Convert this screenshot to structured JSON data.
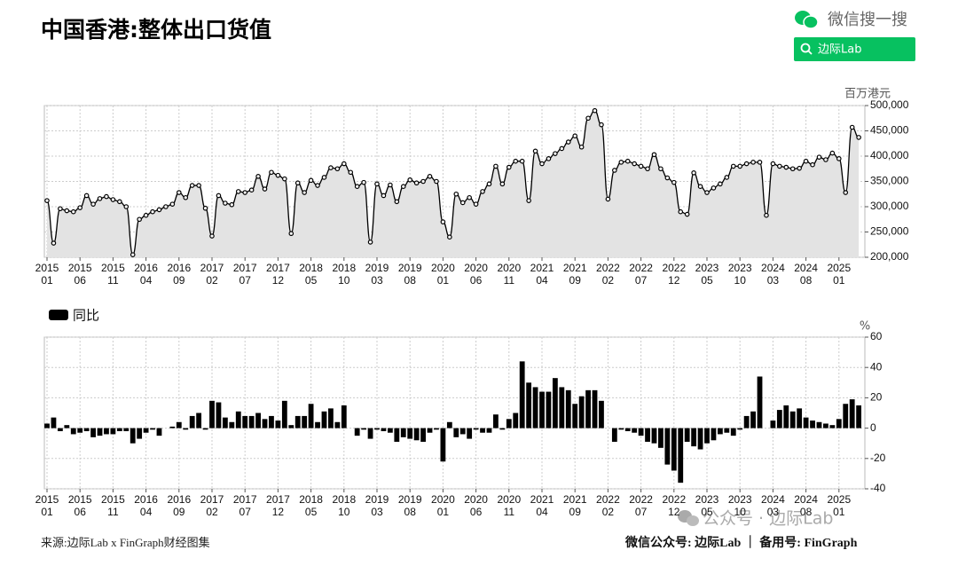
{
  "title": "中国香港:整体出口货值",
  "wechat_search": "微信搜一搜",
  "search_button": "边际Lab",
  "source": "来源:边际Lab x FinGraph财经图集",
  "footer": "微信公众号: 边际Lab ｜ 备用号: FinGraph",
  "watermark": "公众号 · 边际Lab",
  "chart_data": [
    {
      "type": "line",
      "unit": "百万港元",
      "color": "#000000",
      "fill": "#e3e3e3",
      "grid": true,
      "categories": [
        [
          "2015",
          "01"
        ],
        null,
        null,
        null,
        null,
        [
          "2015",
          "06"
        ],
        null,
        null,
        null,
        null,
        [
          "2015",
          "11"
        ],
        null,
        null,
        null,
        null,
        [
          "2016",
          "04"
        ],
        null,
        null,
        null,
        null,
        [
          "2016",
          "09"
        ],
        null,
        null,
        null,
        null,
        [
          "2017",
          "02"
        ],
        null,
        null,
        null,
        null,
        [
          "2017",
          "07"
        ],
        null,
        null,
        null,
        null,
        [
          "2017",
          "12"
        ],
        null,
        null,
        null,
        null,
        [
          "2018",
          "05"
        ],
        null,
        null,
        null,
        null,
        [
          "2018",
          "10"
        ],
        null,
        null,
        null,
        null,
        [
          "2019",
          "03"
        ],
        null,
        null,
        null,
        null,
        [
          "2019",
          "08"
        ],
        null,
        null,
        null,
        null,
        [
          "2020",
          "01"
        ],
        null,
        null,
        null,
        null,
        [
          "2020",
          "06"
        ],
        null,
        null,
        null,
        null,
        [
          "2020",
          "11"
        ],
        null,
        null,
        null,
        null,
        [
          "2021",
          "04"
        ],
        null,
        null,
        null,
        null,
        [
          "2021",
          "09"
        ],
        null,
        null,
        null,
        null,
        [
          "2022",
          "02"
        ],
        null,
        null,
        null,
        null,
        [
          "2022",
          "07"
        ],
        null,
        null,
        null,
        null,
        [
          "2022",
          "12"
        ],
        null,
        null,
        null,
        null,
        [
          "2023",
          "05"
        ],
        null,
        null,
        null,
        null,
        [
          "2023",
          "10"
        ],
        null,
        null,
        null,
        null,
        [
          "2024",
          "03"
        ],
        null,
        null,
        null,
        null,
        [
          "2024",
          "08"
        ],
        null,
        null,
        null,
        null,
        [
          "2025",
          "01"
        ],
        null,
        null,
        null
      ],
      "values": [
        312000,
        228000,
        296000,
        292000,
        290000,
        298000,
        322000,
        305000,
        316000,
        320000,
        314000,
        310000,
        300000,
        205000,
        275000,
        283000,
        290000,
        294000,
        300000,
        305000,
        328000,
        318000,
        342000,
        342000,
        297000,
        242000,
        322000,
        307000,
        304000,
        330000,
        328000,
        333000,
        360000,
        335000,
        368000,
        362000,
        355000,
        247000,
        347000,
        328000,
        352000,
        342000,
        358000,
        377000,
        375000,
        385000,
        368000,
        340000,
        348000,
        230000,
        345000,
        322000,
        343000,
        310000,
        340000,
        353000,
        347000,
        350000,
        360000,
        350000,
        270000,
        240000,
        325000,
        308000,
        318000,
        305000,
        330000,
        345000,
        380000,
        345000,
        378000,
        390000,
        390000,
        312000,
        410000,
        385000,
        395000,
        405000,
        415000,
        428000,
        440000,
        418000,
        475000,
        490000,
        462000,
        315000,
        372000,
        388000,
        390000,
        385000,
        380000,
        375000,
        403000,
        375000,
        357000,
        348000,
        290000,
        285000,
        367000,
        340000,
        328000,
        337000,
        345000,
        358000,
        380000,
        380000,
        385000,
        388000,
        388000,
        283000,
        385000,
        380000,
        378000,
        375000,
        376000,
        390000,
        383000,
        398000,
        393000,
        406000,
        395000,
        328000,
        457000,
        437000
      ],
      "ylim": [
        200000,
        500000
      ],
      "yticks": [
        {
          "value": 200000,
          "label": "200,000"
        },
        {
          "value": 250000,
          "label": "250,000"
        },
        {
          "value": 300000,
          "label": "300,000"
        },
        {
          "value": 350000,
          "label": "350,000"
        },
        {
          "value": 400000,
          "label": "400,000"
        },
        {
          "value": 450000,
          "label": "450,000"
        },
        {
          "value": 500000,
          "label": "500,000"
        }
      ]
    },
    {
      "type": "bar",
      "unit": "%",
      "grid": true,
      "categories": [
        [
          "2015",
          "01"
        ],
        null,
        null,
        null,
        null,
        [
          "2015",
          "06"
        ],
        null,
        null,
        null,
        null,
        [
          "2015",
          "11"
        ],
        null,
        null,
        null,
        null,
        [
          "2016",
          "04"
        ],
        null,
        null,
        null,
        null,
        [
          "2016",
          "09"
        ],
        null,
        null,
        null,
        null,
        [
          "2017",
          "02"
        ],
        null,
        null,
        null,
        null,
        [
          "2017",
          "07"
        ],
        null,
        null,
        null,
        null,
        [
          "2017",
          "12"
        ],
        null,
        null,
        null,
        null,
        [
          "2018",
          "05"
        ],
        null,
        null,
        null,
        null,
        [
          "2018",
          "10"
        ],
        null,
        null,
        null,
        null,
        [
          "2019",
          "03"
        ],
        null,
        null,
        null,
        null,
        [
          "2019",
          "08"
        ],
        null,
        null,
        null,
        null,
        [
          "2020",
          "01"
        ],
        null,
        null,
        null,
        null,
        [
          "2020",
          "06"
        ],
        null,
        null,
        null,
        null,
        [
          "2020",
          "11"
        ],
        null,
        null,
        null,
        null,
        [
          "2021",
          "04"
        ],
        null,
        null,
        null,
        null,
        [
          "2021",
          "09"
        ],
        null,
        null,
        null,
        null,
        [
          "2022",
          "02"
        ],
        null,
        null,
        null,
        null,
        [
          "2022",
          "07"
        ],
        null,
        null,
        null,
        null,
        [
          "2022",
          "12"
        ],
        null,
        null,
        null,
        null,
        [
          "2023",
          "05"
        ],
        null,
        null,
        null,
        null,
        [
          "2023",
          "10"
        ],
        null,
        null,
        null,
        null,
        [
          "2024",
          "03"
        ],
        null,
        null,
        null,
        null,
        [
          "2024",
          "08"
        ],
        null,
        null,
        null,
        null,
        [
          "2025",
          "01"
        ],
        null,
        null,
        null
      ],
      "series": [
        {
          "name": "同比",
          "color": "#000000",
          "values": [
            3,
            7,
            -2,
            2,
            -4,
            -3,
            -2,
            -6,
            -5,
            -4,
            -4,
            -2,
            -2,
            -10,
            -7,
            -3,
            -1,
            -5,
            0,
            1,
            4,
            -1,
            8,
            10,
            -1,
            18,
            17,
            7,
            4,
            11,
            8,
            8,
            10,
            6,
            8,
            5,
            18,
            2,
            8,
            8,
            16,
            4,
            11,
            13,
            4,
            15,
            0,
            -5,
            -1,
            -7,
            -1,
            -2,
            -3,
            -9,
            -6,
            -7,
            -8,
            -9,
            -3,
            -1,
            -22,
            4,
            -6,
            -4,
            -7,
            -1,
            -3,
            -3,
            9,
            -1,
            6,
            10,
            44,
            30,
            27,
            24,
            24,
            33,
            27,
            25,
            16,
            21,
            25,
            25,
            18,
            0,
            -9,
            -1,
            -2,
            -3,
            -5,
            -9,
            -10,
            -13,
            -24,
            -28,
            -36,
            -9,
            -12,
            -14,
            -10,
            -8,
            -4,
            -3,
            -5,
            -1,
            8,
            11,
            34,
            0,
            5,
            12,
            15,
            11,
            13,
            7,
            5,
            4,
            3,
            2,
            6,
            16,
            19,
            15
          ]
        }
      ],
      "ylim": [
        -40,
        60
      ],
      "yticks": [
        -40,
        -20,
        0,
        20,
        40,
        60
      ]
    }
  ]
}
